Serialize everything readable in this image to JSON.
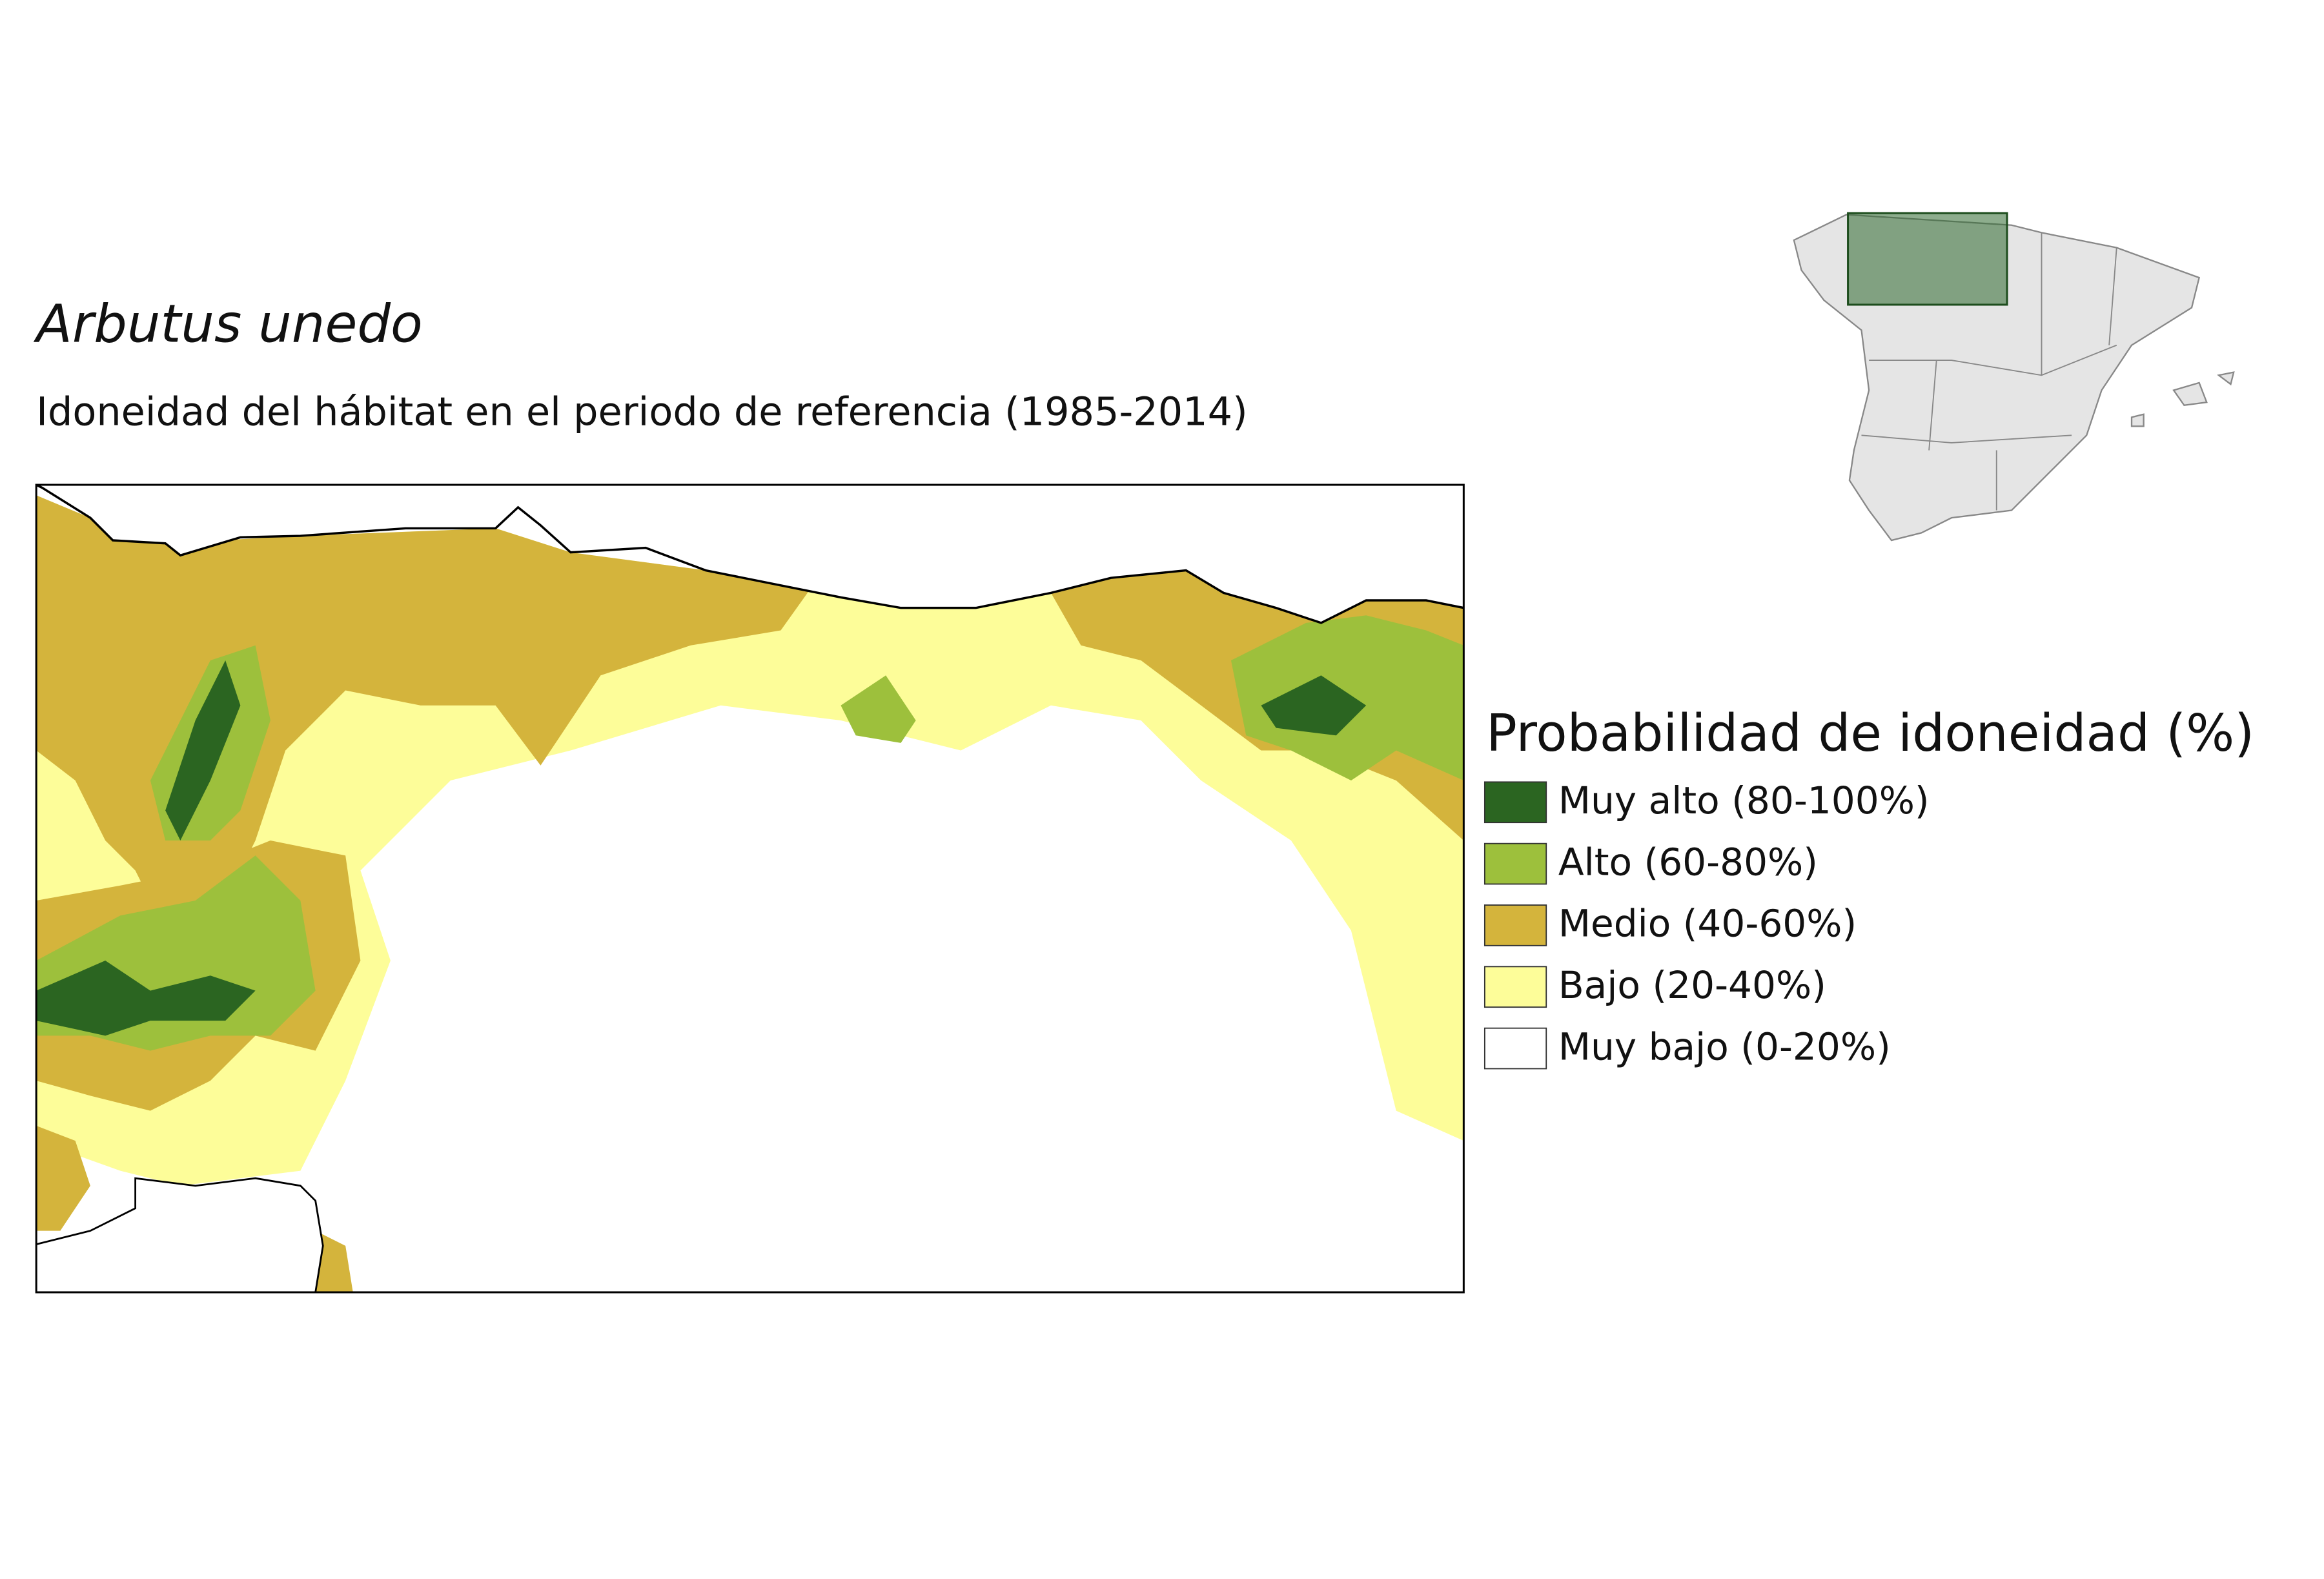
{
  "title": "Arbutus unedo",
  "subtitle": "Idoneidad del hábitat en el periodo de referencia (1985-2014)",
  "legend": {
    "title": "Probabilidad de idoneidad (%)",
    "items": [
      {
        "label": "Muy alto (80-100%)",
        "color": "#2b6521"
      },
      {
        "label": "Alto (60-80%)",
        "color": "#9dc03c"
      },
      {
        "label": "Medio (40-60%)",
        "color": "#d4b43c"
      },
      {
        "label": "Bajo (20-40%)",
        "color": "#fdfd99"
      },
      {
        "label": "Muy bajo (0-20%)",
        "color": "#ffffff"
      }
    ]
  }
}
